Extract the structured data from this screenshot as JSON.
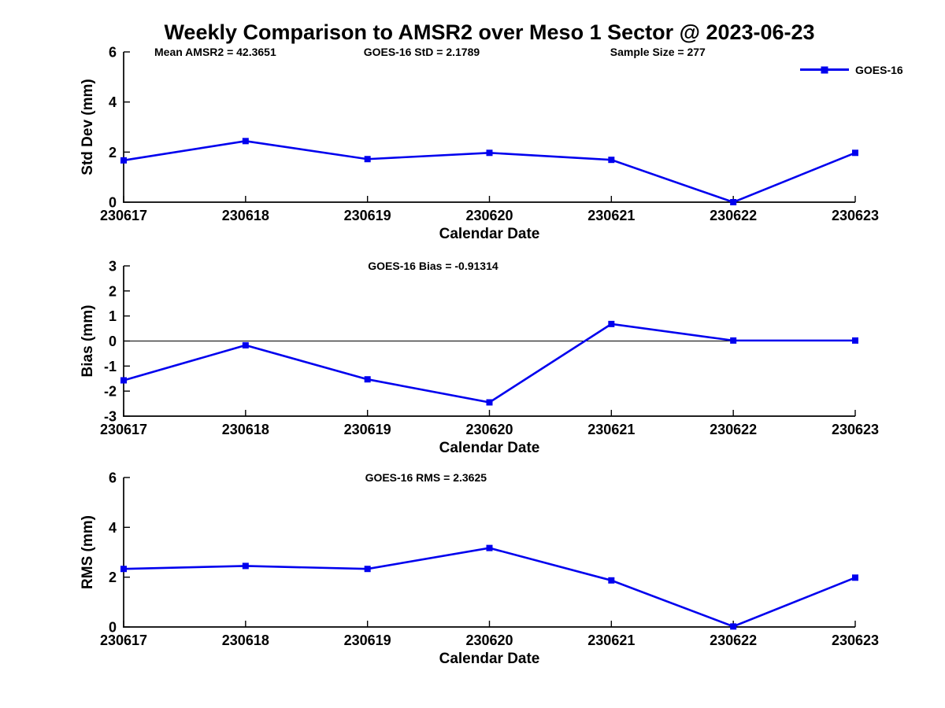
{
  "title": "Weekly Comparison to AMSR2 over Meso 1 Sector @ 2023-06-23",
  "legend": {
    "label": "GOES-16",
    "position": "top-right",
    "marker": "filled-square"
  },
  "colors": {
    "series": "#0000EE",
    "axis": "#000000",
    "background": "#ffffff",
    "text": "#000000"
  },
  "chart_data": [
    {
      "type": "line",
      "title": "",
      "annotations": [
        "Mean AMSR2 = 42.3651",
        "GOES-16 StD = 2.1789",
        "Sample Size = 277"
      ],
      "categories": [
        "230617",
        "230618",
        "230619",
        "230620",
        "230621",
        "230622",
        "230623"
      ],
      "series": [
        {
          "name": "GOES-16",
          "values": [
            1.67,
            2.44,
            1.72,
            1.97,
            1.69,
            0.0,
            1.97
          ]
        }
      ],
      "xlabel": "Calendar Date",
      "ylabel": "Std Dev (mm)",
      "ylim": [
        0,
        6
      ],
      "yticks": [
        0,
        2,
        4,
        6
      ],
      "grid": false,
      "zero_line": false
    },
    {
      "type": "line",
      "title": "",
      "annotations": [
        "GOES-16 Bias  = -0.91314"
      ],
      "categories": [
        "230617",
        "230618",
        "230619",
        "230620",
        "230621",
        "230622",
        "230623"
      ],
      "series": [
        {
          "name": "GOES-16",
          "values": [
            -1.57,
            -0.17,
            -1.53,
            -2.45,
            0.68,
            0.02,
            0.02
          ]
        }
      ],
      "xlabel": "Calendar Date",
      "ylabel": "Bias (mm)",
      "ylim": [
        -3,
        3
      ],
      "yticks": [
        -3,
        -2,
        -1,
        0,
        1,
        2,
        3
      ],
      "grid": false,
      "zero_line": true
    },
    {
      "type": "line",
      "title": "",
      "annotations": [
        "GOES-16 RMS = 2.3625"
      ],
      "categories": [
        "230617",
        "230618",
        "230619",
        "230620",
        "230621",
        "230622",
        "230623"
      ],
      "series": [
        {
          "name": "GOES-16",
          "values": [
            2.33,
            2.45,
            2.33,
            3.17,
            1.87,
            0.02,
            1.98
          ]
        }
      ],
      "xlabel": "Calendar Date",
      "ylabel": "RMS (mm)",
      "ylim": [
        0,
        6
      ],
      "yticks": [
        0,
        2,
        4,
        6
      ],
      "grid": false,
      "zero_line": false
    }
  ]
}
